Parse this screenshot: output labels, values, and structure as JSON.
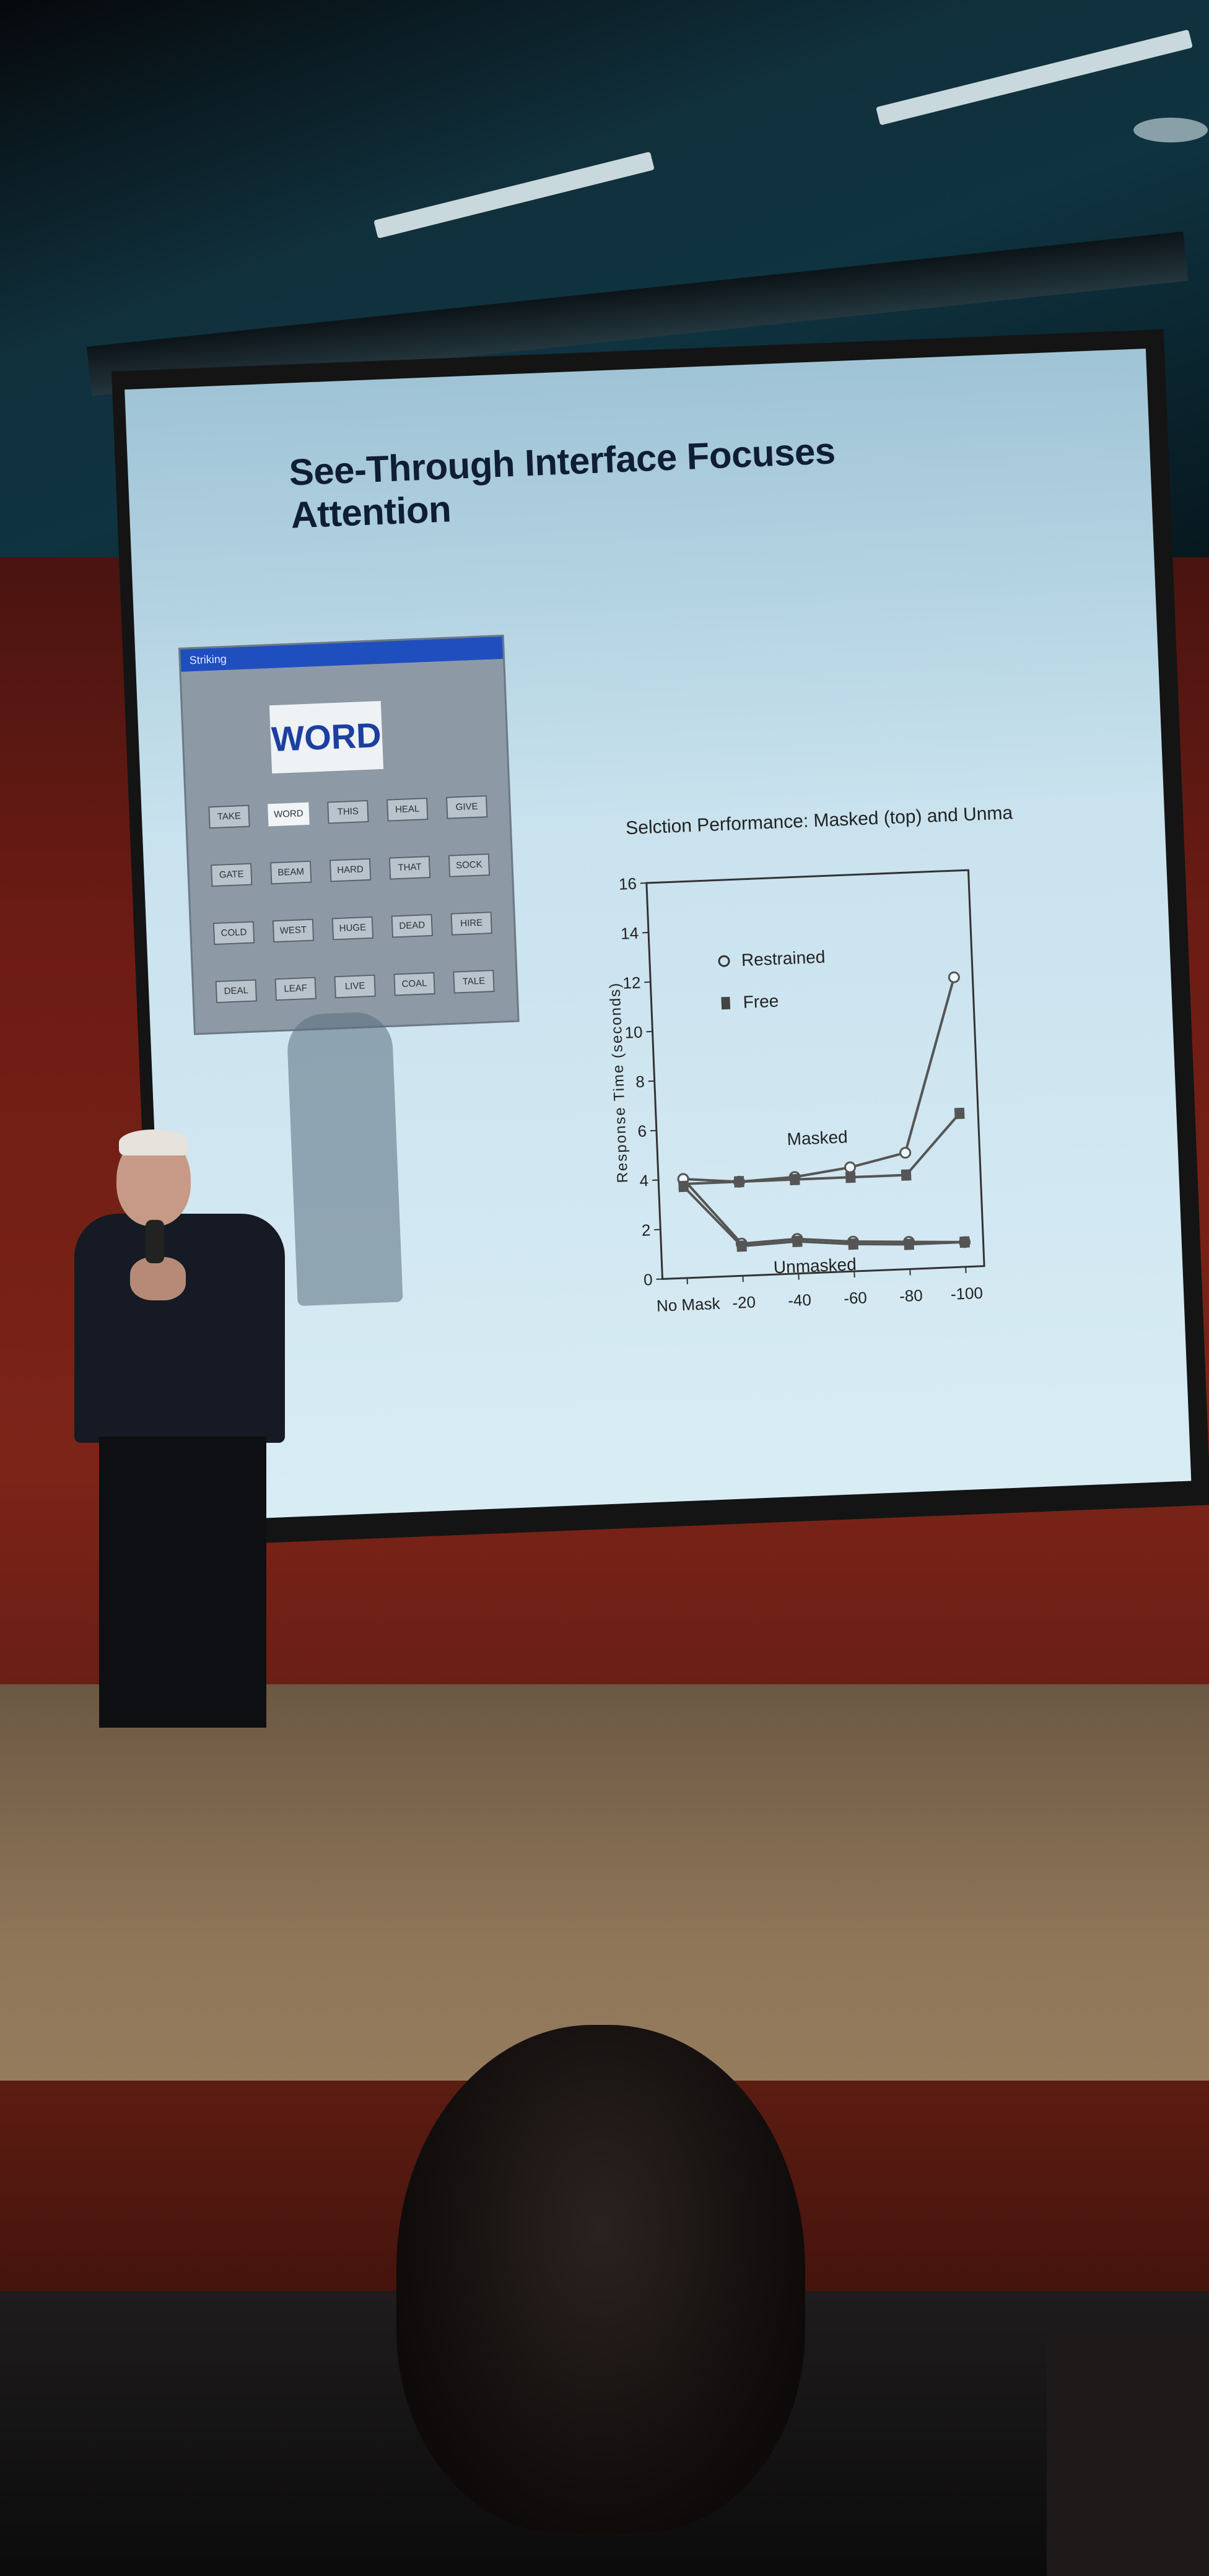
{
  "slide": {
    "title": "See-Through Interface Focuses Attention"
  },
  "app_window": {
    "title": "Striking",
    "target_word": "WORD",
    "words": [
      "TAKE",
      "WORD",
      "THIS",
      "HEAL",
      "GIVE",
      "GATE",
      "BEAM",
      "HARD",
      "THAT",
      "SOCK",
      "COLD",
      "WEST",
      "HUGE",
      "DEAD",
      "HIRE",
      "DEAL",
      "LEAF",
      "LIVE",
      "COAL",
      "TALE"
    ]
  },
  "chart_data": {
    "type": "line",
    "title": "Selction Performance: Masked (top) and Unma",
    "ylabel": "Response Time (seconds)",
    "xlabel": "",
    "categories": [
      "No Mask",
      "-20",
      "-40",
      "-60",
      "-80",
      "-100"
    ],
    "ylim": [
      0,
      16
    ],
    "yticks": [
      0,
      2,
      4,
      6,
      8,
      10,
      12,
      14,
      16
    ],
    "legend": [
      {
        "label": "Restrained",
        "marker": "circle"
      },
      {
        "label": "Free",
        "marker": "square"
      }
    ],
    "legend_position": "upper-left",
    "annotations": [
      "Masked",
      "Unmasked"
    ],
    "series": [
      {
        "name": "Restrained",
        "group": "Masked",
        "marker": "circle",
        "values": [
          4.0,
          3.8,
          3.9,
          4.2,
          4.7,
          11.7
        ]
      },
      {
        "name": "Free",
        "group": "Masked",
        "marker": "square",
        "values": [
          3.8,
          3.8,
          3.8,
          3.8,
          3.8,
          6.2
        ]
      },
      {
        "name": "Restrained",
        "group": "Unmasked",
        "marker": "circle",
        "values": [
          4.0,
          1.3,
          1.4,
          1.2,
          1.1,
          1.0
        ]
      },
      {
        "name": "Free",
        "group": "Unmasked",
        "marker": "square",
        "values": [
          3.7,
          1.2,
          1.3,
          1.1,
          1.0,
          1.0
        ]
      }
    ]
  },
  "colors": {
    "slide_background": "#c9e2ee",
    "title_text": "#0f1e33",
    "app_titlebar": "#1f4fbf",
    "chart_line": "#555555",
    "wall": "#7c2418"
  }
}
